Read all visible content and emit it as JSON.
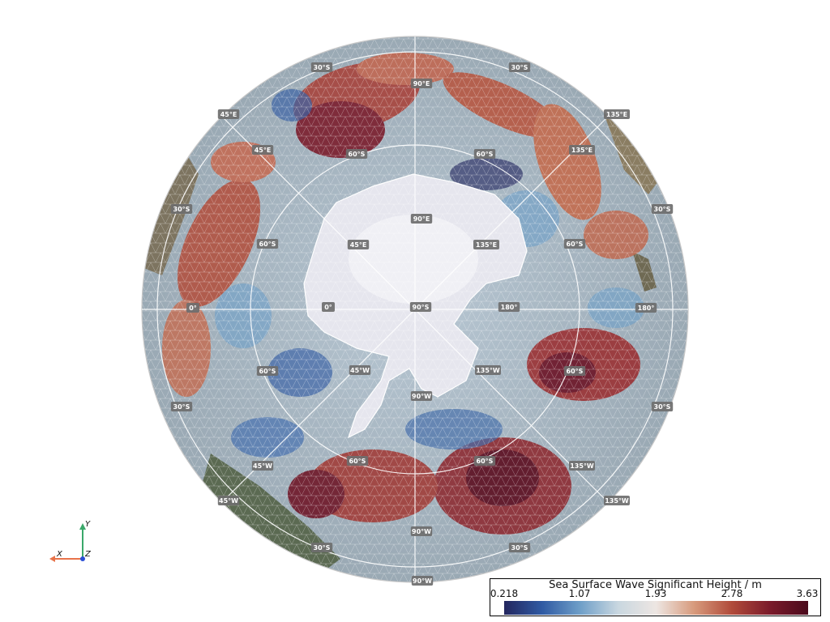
{
  "map": {
    "projection": "orthographic-south-polar",
    "center_label": "90°S",
    "inner_labels": [
      {
        "text": "90°E"
      },
      {
        "text": "45°E"
      },
      {
        "text": "135°E"
      },
      {
        "text": "0°"
      },
      {
        "text": "180°"
      },
      {
        "text": "45°W"
      },
      {
        "text": "135°W"
      },
      {
        "text": "90°W"
      }
    ],
    "ring60_labels": [
      {
        "text": "60°S"
      },
      {
        "text": "60°S"
      },
      {
        "text": "60°S"
      },
      {
        "text": "60°S"
      },
      {
        "text": "60°S"
      },
      {
        "text": "60°S"
      },
      {
        "text": "60°S"
      },
      {
        "text": "60°S"
      }
    ],
    "mid_labels": [
      {
        "text": "90°E"
      },
      {
        "text": "45°E"
      },
      {
        "text": "135°E"
      },
      {
        "text": "0°"
      },
      {
        "text": "180°"
      },
      {
        "text": "45°W"
      },
      {
        "text": "135°W"
      },
      {
        "text": "90°W"
      }
    ],
    "ring30_labels": [
      {
        "text": "30°S"
      },
      {
        "text": "30°S"
      },
      {
        "text": "30°S"
      },
      {
        "text": "30°S"
      },
      {
        "text": "30°S"
      },
      {
        "text": "30°S"
      },
      {
        "text": "30°S"
      },
      {
        "text": "30°S"
      }
    ],
    "edge_labels": [
      {
        "text": "45°E"
      },
      {
        "text": "135°E"
      },
      {
        "text": "45°W"
      },
      {
        "text": "135°W"
      },
      {
        "text": "90°W"
      }
    ],
    "colors": {
      "land": "#8a7f66",
      "ice": "#e9e9ef",
      "ocean_mid": "#b9c6d2",
      "grid_lines": "#ffffff"
    }
  },
  "colorbar": {
    "title": "Sea Surface Wave Significant Height / m",
    "ticks": [
      "0.218",
      "1.07",
      "1.93",
      "2.78",
      "3.63"
    ],
    "min": 0.218,
    "max": 3.63,
    "colors": [
      "#23265e",
      "#2f5aa3",
      "#6f9fc8",
      "#c9d7e0",
      "#ede6e2",
      "#d79a7c",
      "#b04a3a",
      "#7a1a2a",
      "#4a0a1c"
    ]
  },
  "axes": {
    "x_label": "X",
    "y_label": "Y",
    "z_label": "Z",
    "x_color": "#e8734a",
    "y_color": "#3aa86a",
    "z_color": "#2a4fd6"
  }
}
